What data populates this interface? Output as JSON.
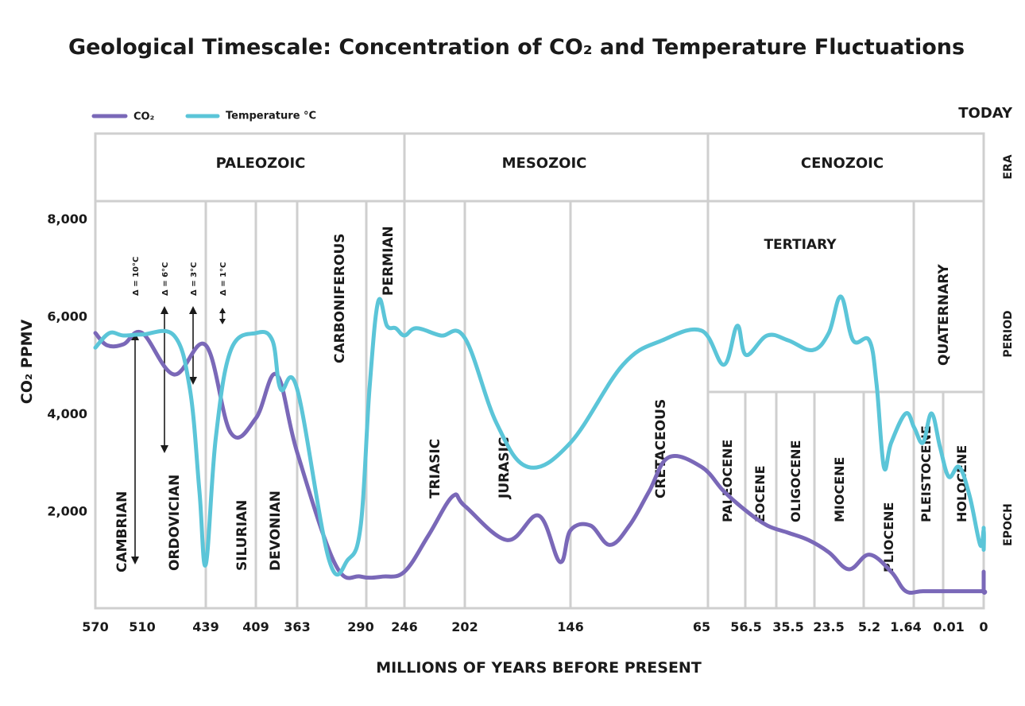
{
  "chart_data": {
    "type": "line",
    "title": "Geological Timescale: Concentration of CO₂ and Temperature Fluctuations",
    "xlabel": "MILLIONS OF YEARS BEFORE PRESENT",
    "ylabel": "CO₂ PPMV",
    "ylim": [
      0,
      8000
    ],
    "yticks": [
      "8,000",
      "6,000",
      "4,000",
      "2,000"
    ],
    "xticks": [
      "570",
      "510",
      "439",
      "409",
      "363",
      "290",
      "246",
      "202",
      "146",
      "65",
      "56.5",
      "35.5",
      "23.5",
      "5.2",
      "1.64",
      "0.01",
      "0"
    ],
    "today_label": "TODAY",
    "row_labels": [
      "ERA",
      "PERIOD",
      "EPOCH"
    ],
    "legend": [
      {
        "name": "CO₂",
        "color": "#7a68b8"
      },
      {
        "name": "Temperature °C",
        "color": "#5bc5d8"
      }
    ],
    "eras": [
      "PALEOZOIC",
      "MESOZOIC",
      "CENOZOIC"
    ],
    "periods": [
      "CAMBRIAN",
      "ORDOVICIAN",
      "SILURIAN",
      "DEVONIAN",
      "CARBONIFEROUS",
      "PERMIAN",
      "TRIASIC",
      "JURASIC",
      "CRETACEOUS",
      "TERTIARY",
      "QUATERNARY"
    ],
    "epochs": [
      "PALEOCENE",
      "EOCENE",
      "OLIGOCENE",
      "MIOCENE",
      "PLIOCENE",
      "PLEISTOCENE",
      "HOLOCENE"
    ],
    "annotations": [
      "Δ = 10°C",
      "Δ = 6°C",
      "Δ = 3°C",
      "Δ = 1°C"
    ],
    "series": [
      {
        "name": "CO₂",
        "x_tick_index": [
          0,
          0.25,
          0.6,
          1,
          1.5,
          2,
          2.5,
          3,
          3.5,
          4,
          4.6,
          5,
          5.5,
          6,
          6.4,
          6.8,
          7,
          7.4,
          7.7,
          7.9,
          8,
          8.15,
          8.3,
          8.45,
          8.6,
          8.75,
          9,
          9.5,
          10,
          10.5,
          11,
          11.5,
          12,
          12.5,
          13,
          13.6,
          14,
          14.4,
          15,
          15.5,
          16,
          16.5,
          16.9
        ],
        "values": [
          5650,
          5400,
          5420,
          5650,
          4800,
          5400,
          3600,
          3900,
          4800,
          3200,
          900,
          650,
          650,
          750,
          1500,
          2300,
          2100,
          1400,
          1900,
          950,
          1600,
          1700,
          1300,
          1700,
          2400,
          3100,
          2900,
          2400,
          2000,
          1700,
          1550,
          1400,
          1150,
          800,
          1100,
          750,
          350,
          350,
          350,
          350,
          350,
          350,
          750
        ]
      },
      {
        "name": "Temperature °C",
        "x_tick_index": [
          0,
          0.3,
          0.6,
          1,
          1.5,
          1.75,
          1.9,
          2,
          2.2,
          2.5,
          3,
          3.4,
          3.6,
          4,
          4.5,
          4.8,
          5,
          5.2,
          5.4,
          5.6,
          5.8,
          6,
          6.2,
          6.6,
          7,
          7.3,
          7.6,
          8,
          8.4,
          8.7,
          9,
          9.5,
          9.8,
          10,
          10.5,
          11,
          11.6,
          12,
          12.3,
          12.6,
          13,
          13.2,
          13.4,
          13.6,
          14,
          14.2,
          14.4,
          14.6,
          14.8,
          15,
          15.3,
          15.6,
          15.9,
          16.2,
          16.6,
          16.9
        ],
        "values": [
          5350,
          5650,
          5600,
          5620,
          5600,
          4500,
          2400,
          900,
          3500,
          5300,
          5650,
          5500,
          4500,
          4500,
          1000,
          1000,
          1700,
          4500,
          6300,
          5800,
          5750,
          5600,
          5750,
          5600,
          5550,
          3800,
          2900,
          3400,
          5000,
          5500,
          5700,
          5000,
          5800,
          5200,
          5600,
          5500,
          5300,
          5650,
          6400,
          5500,
          5500,
          4600,
          2900,
          3400,
          4000,
          3700,
          3400,
          4000,
          3300,
          2700,
          2900,
          2300,
          1300,
          1600,
          1200,
          1650
        ]
      }
    ]
  }
}
